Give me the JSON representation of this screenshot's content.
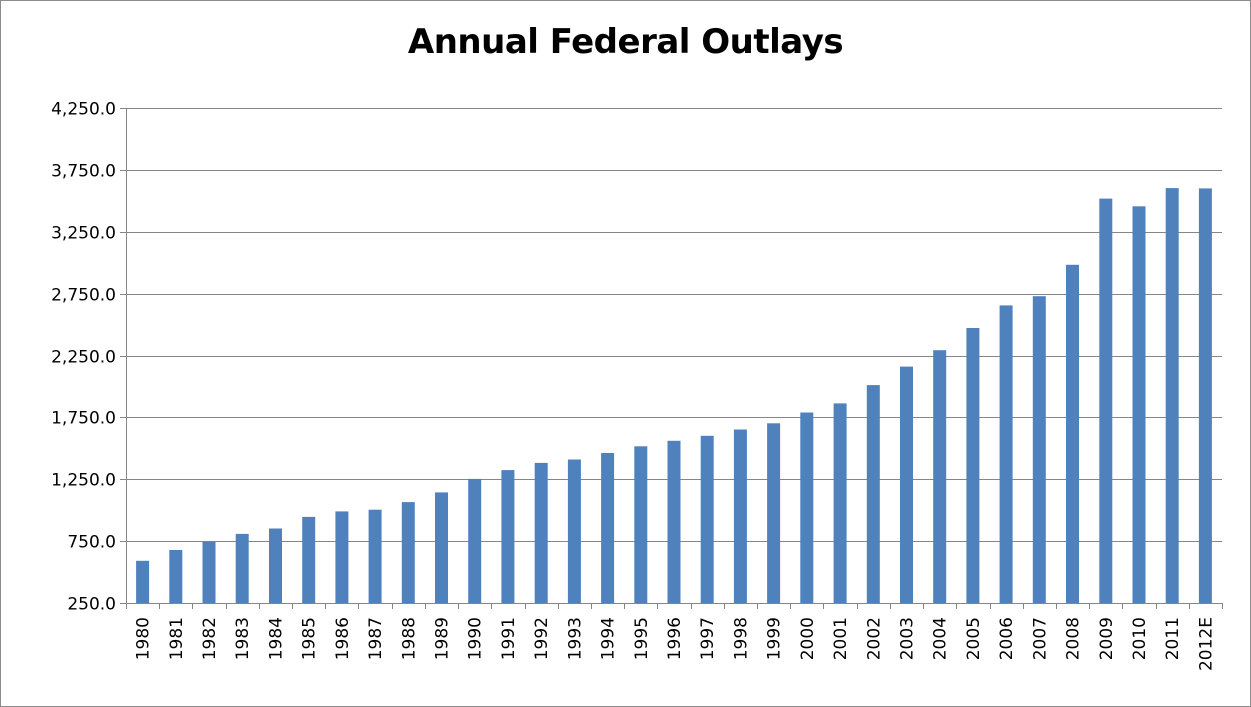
{
  "chart_data": {
    "type": "bar",
    "title": "Annual Federal Outlays",
    "xlabel": "",
    "ylabel": "",
    "categories": [
      "1980",
      "1981",
      "1982",
      "1983",
      "1984",
      "1985",
      "1986",
      "1987",
      "1988",
      "1989",
      "1990",
      "1991",
      "1992",
      "1993",
      "1994",
      "1995",
      "1996",
      "1997",
      "1998",
      "1999",
      "2000",
      "2001",
      "2002",
      "2003",
      "2004",
      "2005",
      "2006",
      "2007",
      "2008",
      "2009",
      "2010",
      "2011",
      "2012E"
    ],
    "values": [
      591,
      678,
      746,
      808,
      852,
      946,
      990,
      1004,
      1065,
      1144,
      1253,
      1324,
      1382,
      1410,
      1462,
      1516,
      1561,
      1601,
      1652,
      1702,
      1789,
      1863,
      2011,
      2160,
      2293,
      2472,
      2655,
      2729,
      2983,
      3518,
      3456,
      3603,
      3600
    ],
    "y_ticks": [
      "250.0",
      "750.0",
      "1,250.0",
      "1,750.0",
      "2,250.0",
      "2,750.0",
      "3,250.0",
      "3,750.0",
      "4,250.0"
    ],
    "ylim": [
      250,
      4250
    ],
    "grid": true,
    "legend": "none",
    "bar_color": "#4f81bd",
    "grid_color": "#868686"
  }
}
